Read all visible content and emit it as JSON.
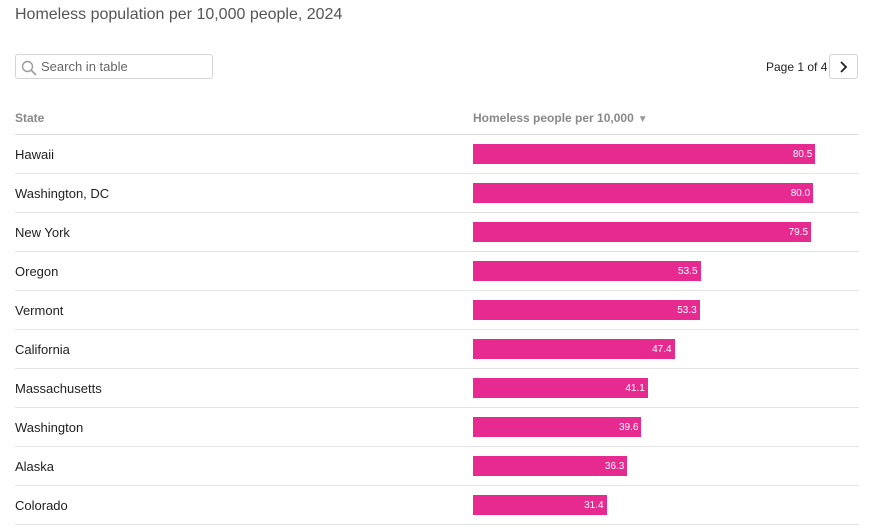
{
  "title": "Homeless population per 10,000 people, 2024",
  "search": {
    "placeholder": "Search in table",
    "value": ""
  },
  "pagination": {
    "label": "Page 1 of 4"
  },
  "columns": {
    "state": "State",
    "value": "Homeless people per 10,000"
  },
  "colors": {
    "bar": "#e62a8f",
    "header_text": "#888888",
    "rule": "#dddddd"
  },
  "chart_data": {
    "type": "table",
    "title": "Homeless population per 10,000 people, 2024",
    "columns": [
      "State",
      "Homeless people per 10,000"
    ],
    "categories": [
      "Hawaii",
      "Washington, DC",
      "New York",
      "Oregon",
      "Vermont",
      "California",
      "Massachusetts",
      "Washington",
      "Alaska",
      "Colorado"
    ],
    "values": [
      80.5,
      80.0,
      79.5,
      53.5,
      53.3,
      47.4,
      41.1,
      39.6,
      36.3,
      31.4
    ],
    "value_labels": [
      "80.5",
      "80.0",
      "79.5",
      "53.5",
      "53.3",
      "47.4",
      "41.1",
      "39.6",
      "36.3",
      "31.4"
    ],
    "sort": "descending",
    "xlim": [
      0,
      87
    ]
  }
}
